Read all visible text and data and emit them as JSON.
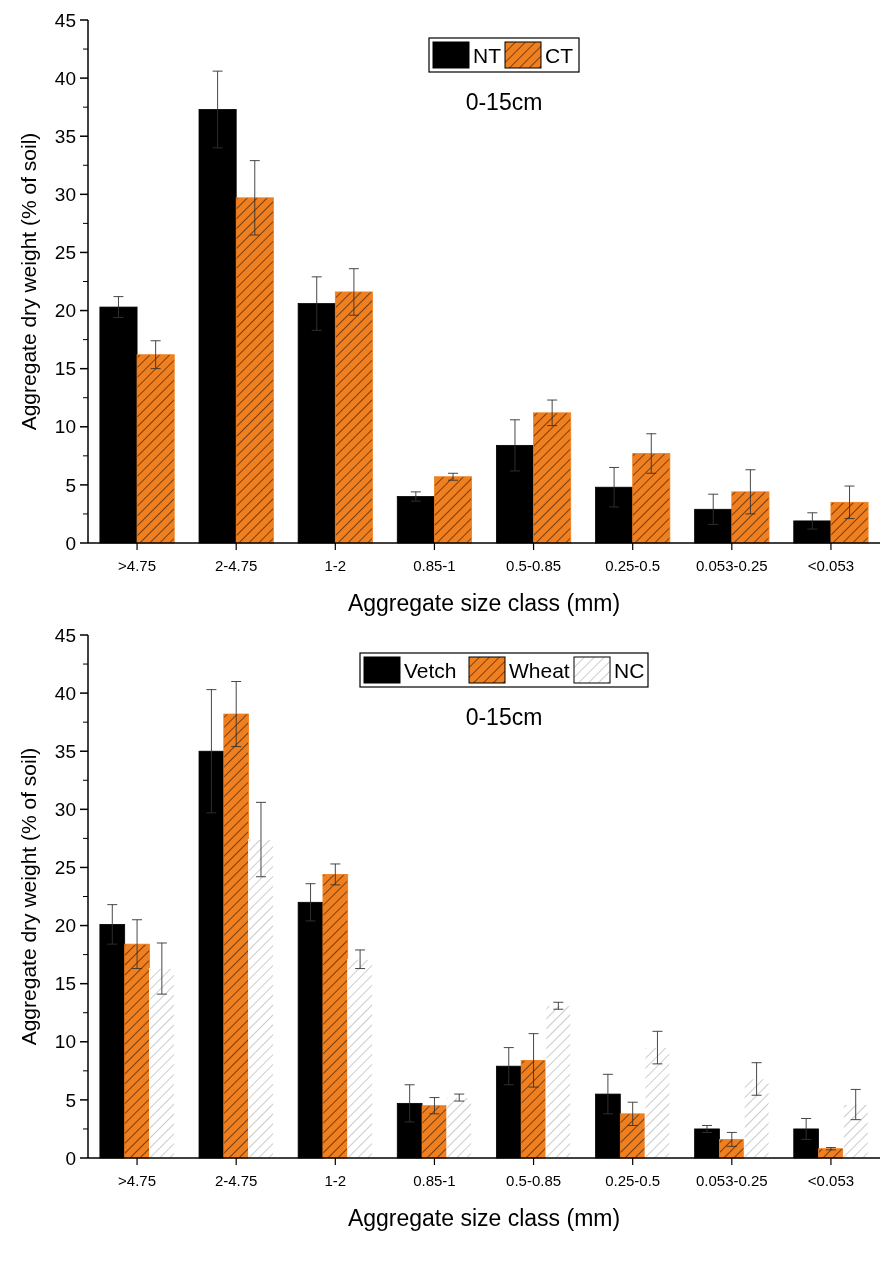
{
  "chart_data": [
    {
      "type": "bar",
      "categories": [
        ">4.75",
        "2-4.75",
        "1-2",
        "0.85-1",
        "0.5-0.85",
        "0.25-0.5",
        "0.053-0.25",
        "<0.053"
      ],
      "series": [
        {
          "name": "NT",
          "color": "#000000",
          "values": [
            20.3,
            37.3,
            20.6,
            4.0,
            8.4,
            4.8,
            2.9,
            1.9
          ],
          "errors": [
            0.9,
            3.3,
            2.3,
            0.4,
            2.2,
            1.7,
            1.3,
            0.7
          ]
        },
        {
          "name": "CT",
          "color": "#f07f1f",
          "values": [
            16.2,
            29.7,
            21.6,
            5.7,
            11.2,
            7.7,
            4.4,
            3.5
          ],
          "errors": [
            1.2,
            3.2,
            2.0,
            0.3,
            1.1,
            1.7,
            1.9,
            1.4
          ]
        }
      ],
      "xlabel": "Aggregate size class (mm)",
      "ylabel": "Aggregate dry weight (% of soil)",
      "ylim": [
        0,
        45
      ],
      "yticks": [
        0,
        5,
        10,
        15,
        20,
        25,
        30,
        35,
        40,
        45
      ],
      "legend": "top",
      "grid": false,
      "annotations": [
        "0-15cm"
      ]
    },
    {
      "type": "bar",
      "categories": [
        ">4.75",
        "2-4.75",
        "1-2",
        "0.85-1",
        "0.5-0.85",
        "0.25-0.5",
        "0.053-0.25",
        "<0.053"
      ],
      "series": [
        {
          "name": "Vetch",
          "color": "#000000",
          "values": [
            20.1,
            35.0,
            22.0,
            4.7,
            7.9,
            5.5,
            2.5,
            2.5
          ],
          "errors": [
            1.7,
            5.3,
            1.6,
            1.6,
            1.6,
            1.7,
            0.3,
            0.9
          ]
        },
        {
          "name": "Wheat",
          "color": "#f07f1f",
          "values": [
            18.4,
            38.2,
            24.4,
            4.5,
            8.4,
            3.8,
            1.6,
            0.8
          ],
          "errors": [
            2.1,
            2.8,
            0.9,
            0.7,
            2.3,
            1.0,
            0.6,
            0.1
          ]
        },
        {
          "name": "NC",
          "color": "#ffffff",
          "values": [
            16.3,
            27.4,
            17.1,
            5.2,
            13.1,
            9.5,
            6.8,
            4.6
          ],
          "errors": [
            2.2,
            3.2,
            0.8,
            0.3,
            0.3,
            1.4,
            1.4,
            1.3
          ]
        }
      ],
      "xlabel": "Aggregate size class (mm)",
      "ylabel": "Aggregate dry weight (% of soil)",
      "ylim": [
        0,
        45
      ],
      "yticks": [
        0,
        5,
        10,
        15,
        20,
        25,
        30,
        35,
        40,
        45
      ],
      "legend": "top",
      "grid": false,
      "annotations": [
        "0-15cm"
      ]
    }
  ]
}
